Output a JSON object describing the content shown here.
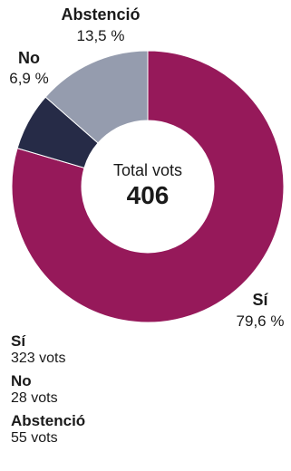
{
  "chart_data": {
    "type": "pie",
    "donut": true,
    "center": {
      "caption": "Total vots",
      "value": "406"
    },
    "slices": [
      {
        "name": "Sí",
        "votes": 323,
        "votes_text": "323 vots",
        "percent": 79.6,
        "percent_text": "79,6 %",
        "color": "#96195a"
      },
      {
        "name": "No",
        "votes": 28,
        "votes_text": "28 vots",
        "percent": 6.9,
        "percent_text": "6,9 %",
        "color": "#262b47"
      },
      {
        "name": "Abstenció",
        "votes": 55,
        "votes_text": "55 vots",
        "percent": 13.5,
        "percent_text": "13,5 %",
        "color": "#959cae"
      }
    ]
  }
}
